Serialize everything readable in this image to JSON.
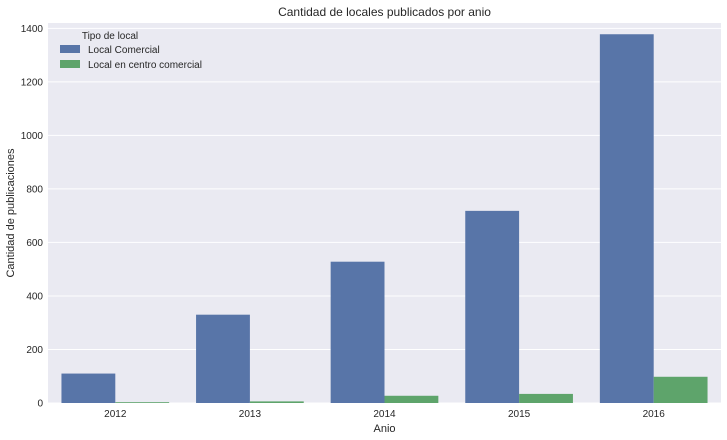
{
  "chart_data": {
    "type": "bar",
    "title": "Cantidad de locales publicados por anio",
    "xlabel": "Anio",
    "ylabel": "Cantidad de publicaciones",
    "categories": [
      "2012",
      "2013",
      "2014",
      "2015",
      "2016"
    ],
    "ylim": [
      0,
      1420
    ],
    "yticks": [
      0,
      200,
      400,
      600,
      800,
      1000,
      1200,
      1400
    ],
    "grid": true,
    "legend": {
      "title": "Tipo de local",
      "placement": "top-left"
    },
    "series": [
      {
        "name": "Local Comercial",
        "color": "#5875a8",
        "values": [
          110,
          330,
          528,
          718,
          1378
        ]
      },
      {
        "name": "Local en centro comercial",
        "color": "#5ea46b",
        "values": [
          3,
          6,
          27,
          34,
          98
        ]
      }
    ],
    "background": "#eaeaf2"
  }
}
